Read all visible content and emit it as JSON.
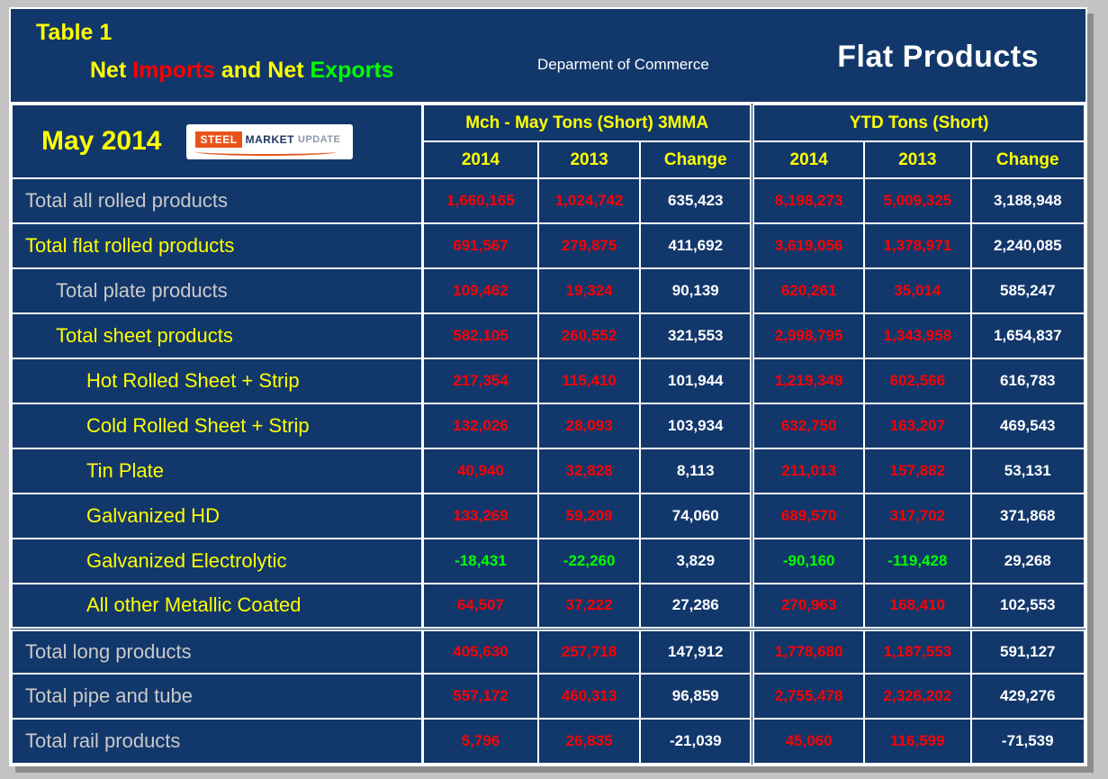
{
  "colors": {
    "pagebg": "#c3c3c3",
    "shadow": "#8d8d8d",
    "navy": "#12376b",
    "white": "#ffffff",
    "yellow": "#ffff00",
    "red": "#ff0000",
    "green": "#00ff00",
    "graylabel": "#c9c9c9",
    "orange": "#e8531a",
    "logonavy": "#1f3864"
  },
  "header": {
    "table_label": "Table 1",
    "title_parts": {
      "net1": "Net ",
      "imports": "Imports",
      "and_net": " and Net ",
      "exports": "Exports"
    },
    "department": "Deparment of Commerce",
    "product": "Flat Products",
    "period": "May 2014"
  },
  "logo": {
    "steel": "STEEL",
    "market": "MARKET",
    "update": "UPDATE"
  },
  "groups": [
    {
      "label": "Mch - May Tons (Short) 3MMA"
    },
    {
      "label": "YTD Tons (Short)"
    }
  ],
  "col_headers": [
    "2014",
    "2013",
    "Change",
    "2014",
    "2013",
    "Change"
  ],
  "rows": [
    {
      "label": "Total all rolled products",
      "indent": 0,
      "label_style": "gray",
      "values": [
        "1,660,165",
        "1,024,742",
        "635,423",
        "8,198,273",
        "5,009,325",
        "3,188,948"
      ]
    },
    {
      "label": "Total flat rolled products",
      "indent": 0,
      "label_style": "yellow",
      "values": [
        "691,567",
        "279,875",
        "411,692",
        "3,619,056",
        "1,378,971",
        "2,240,085"
      ]
    },
    {
      "label": "Total plate products",
      "indent": 1,
      "label_style": "gray",
      "values": [
        "109,462",
        "19,324",
        "90,139",
        "620,261",
        "35,014",
        "585,247"
      ]
    },
    {
      "label": "Total sheet products",
      "indent": 1,
      "label_style": "yellow",
      "values": [
        "582,105",
        "260,552",
        "321,553",
        "2,998,795",
        "1,343,958",
        "1,654,837"
      ]
    },
    {
      "label": "Hot Rolled Sheet + Strip",
      "indent": 2,
      "label_style": "yellow",
      "values": [
        "217,354",
        "115,410",
        "101,944",
        "1,219,349",
        "602,566",
        "616,783"
      ]
    },
    {
      "label": "Cold Rolled Sheet + Strip",
      "indent": 2,
      "label_style": "yellow",
      "values": [
        "132,026",
        "28,093",
        "103,934",
        "632,750",
        "163,207",
        "469,543"
      ]
    },
    {
      "label": "Tin Plate",
      "indent": 2,
      "label_style": "yellow",
      "values": [
        "40,940",
        "32,828",
        "8,113",
        "211,013",
        "157,882",
        "53,131"
      ]
    },
    {
      "label": "Galvanized HD",
      "indent": 2,
      "label_style": "yellow",
      "values": [
        "133,269",
        "59,209",
        "74,060",
        "689,570",
        "317,702",
        "371,868"
      ]
    },
    {
      "label": "Galvanized Electrolytic",
      "indent": 2,
      "label_style": "yellow",
      "values": [
        "-18,431",
        "-22,260",
        "3,829",
        "-90,160",
        "-119,428",
        "29,268"
      ]
    },
    {
      "label": "All other Metallic Coated",
      "indent": 2,
      "label_style": "yellow",
      "section_end": true,
      "values": [
        "64,507",
        "37,222",
        "27,286",
        "270,963",
        "168,410",
        "102,553"
      ]
    },
    {
      "label": "Total long products",
      "indent": 0,
      "label_style": "gray",
      "values": [
        "405,630",
        "257,718",
        "147,912",
        "1,778,680",
        "1,187,553",
        "591,127"
      ]
    },
    {
      "label": "Total pipe and tube",
      "indent": 0,
      "label_style": "gray",
      "values": [
        "557,172",
        "460,313",
        "96,859",
        "2,755,478",
        "2,326,202",
        "429,276"
      ]
    },
    {
      "label": "Total rail products",
      "indent": 0,
      "label_style": "gray",
      "values": [
        "5,796",
        "26,835",
        "-21,039",
        "45,060",
        "116,599",
        "-71,539"
      ]
    }
  ],
  "chart_data": {
    "type": "table",
    "title": "Table 1 - Net Imports and Net Exports",
    "subtitle": "Flat Products, May 2014, Deparment of Commerce",
    "column_groups": [
      "Mch - May Tons (Short) 3MMA",
      "YTD Tons (Short)"
    ],
    "columns": [
      "3MMA 2014",
      "3MMA 2013",
      "3MMA Change",
      "YTD 2014",
      "YTD 2013",
      "YTD Change"
    ],
    "rows": [
      {
        "label": "Total all rolled products",
        "values": [
          1660165,
          1024742,
          635423,
          8198273,
          5009325,
          3188948
        ]
      },
      {
        "label": "Total flat rolled products",
        "values": [
          691567,
          279875,
          411692,
          3619056,
          1378971,
          2240085
        ]
      },
      {
        "label": "Total plate products",
        "values": [
          109462,
          19324,
          90139,
          620261,
          35014,
          585247
        ]
      },
      {
        "label": "Total sheet products",
        "values": [
          582105,
          260552,
          321553,
          2998795,
          1343958,
          1654837
        ]
      },
      {
        "label": "Hot Rolled Sheet + Strip",
        "values": [
          217354,
          115410,
          101944,
          1219349,
          602566,
          616783
        ]
      },
      {
        "label": "Cold Rolled Sheet + Strip",
        "values": [
          132026,
          28093,
          103934,
          632750,
          163207,
          469543
        ]
      },
      {
        "label": "Tin Plate",
        "values": [
          40940,
          32828,
          8113,
          211013,
          157882,
          53131
        ]
      },
      {
        "label": "Galvanized HD",
        "values": [
          133269,
          59209,
          74060,
          689570,
          317702,
          371868
        ]
      },
      {
        "label": "Galvanized Electrolytic",
        "values": [
          -18431,
          -22260,
          3829,
          -90160,
          -119428,
          29268
        ]
      },
      {
        "label": "All other Metallic Coated",
        "values": [
          64507,
          37222,
          27286,
          270963,
          168410,
          102553
        ]
      },
      {
        "label": "Total long products",
        "values": [
          405630,
          257718,
          147912,
          1778680,
          1187553,
          591127
        ]
      },
      {
        "label": "Total pipe and tube",
        "values": [
          557172,
          460313,
          96859,
          2755478,
          2326202,
          429276
        ]
      },
      {
        "label": "Total rail products",
        "values": [
          5796,
          26835,
          -21039,
          45060,
          116599,
          -71539
        ]
      }
    ]
  }
}
